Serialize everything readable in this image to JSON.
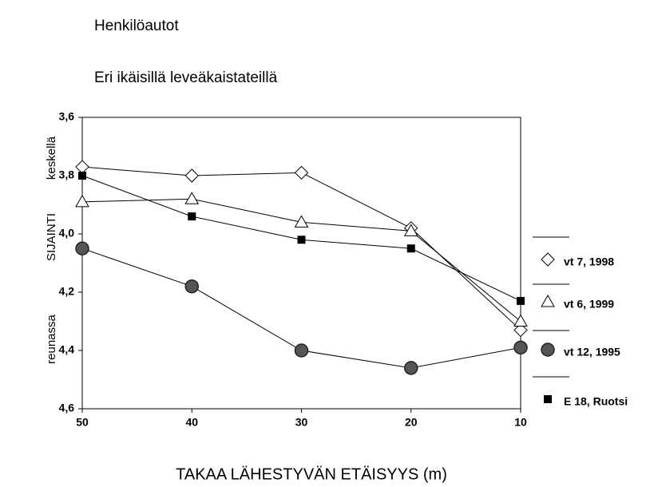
{
  "chart_data": {
    "type": "line",
    "title": "Henkilöautot",
    "subtitle": "Eri ikäisillä leveäkaistateillä",
    "x_label": "TAKAA LÄHESTYVÄN ETÄISYYS (m)",
    "y_labels": [
      "reunassa",
      "SIJAINTI",
      "keskellä"
    ],
    "x": [
      50,
      40,
      30,
      20,
      10
    ],
    "xlim": [
      50,
      10
    ],
    "xticks": [
      50,
      40,
      30,
      20,
      10
    ],
    "ylim": [
      4.6,
      3.6
    ],
    "yticks": [
      {
        "value": 3.6,
        "label": "3,6"
      },
      {
        "value": 3.8,
        "label": "3,8"
      },
      {
        "value": 4.0,
        "label": "4,0"
      },
      {
        "value": 4.2,
        "label": "4,2"
      },
      {
        "value": 4.4,
        "label": "4,4"
      },
      {
        "value": 4.6,
        "label": "4,6"
      }
    ],
    "series": [
      {
        "name": "vt 7, 1998",
        "color": "#000000",
        "marker": "diamond",
        "values": [
          3.77,
          3.8,
          3.79,
          3.98,
          4.33
        ]
      },
      {
        "name": "vt 6, 1999",
        "color": "#000000",
        "marker": "triangle",
        "values": [
          3.89,
          3.88,
          3.96,
          3.99,
          4.3
        ]
      },
      {
        "name": "vt 12, 1995",
        "color": "#000000",
        "marker": "circle",
        "values": [
          4.05,
          4.18,
          4.4,
          4.46,
          4.39
        ]
      },
      {
        "name": "E 18, Ruotsi",
        "color": "#000000",
        "marker": "square",
        "values": [
          3.8,
          3.94,
          4.02,
          4.05,
          4.23
        ]
      }
    ]
  }
}
